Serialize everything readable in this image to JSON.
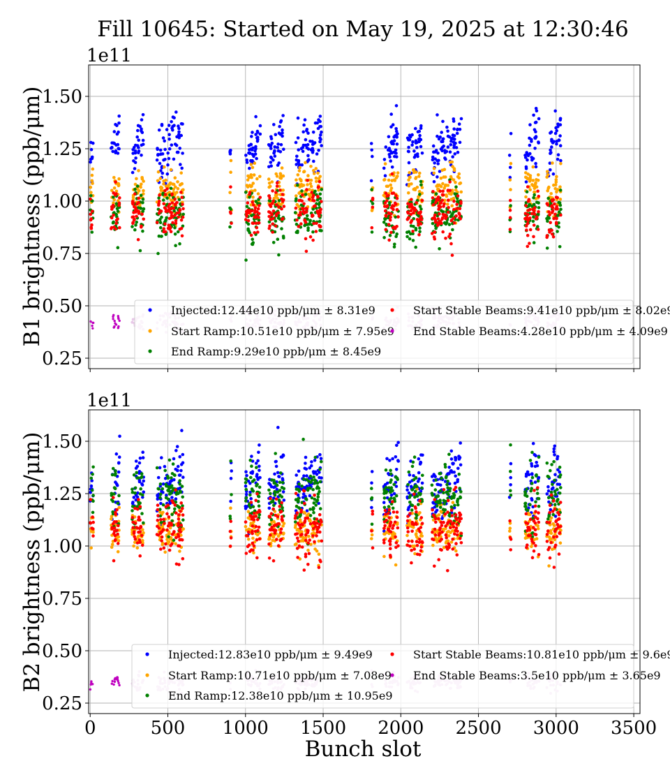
{
  "colors": {
    "injected": "#0000ff",
    "start_ramp": "#ffa500",
    "end_ramp": "#008000",
    "start_stable": "#ff0000",
    "end_stable_b1": "#bf00bf",
    "end_stable_b2": "#bf00bf",
    "end_stable_light": "#e8c8e8"
  },
  "chart_data": {
    "type": "scatter",
    "title": "Fill 10645: Started on May 19, 2025 at 12:30:46",
    "xlabel": "Bunch slot",
    "xlim": [
      -10,
      3540
    ],
    "xticks": [
      "0",
      "500",
      "1000",
      "1500",
      "2000",
      "2500",
      "3000",
      "3500"
    ],
    "panels": [
      {
        "id": "B1",
        "ylabel": "B1 brightness (ppb/μm)",
        "multiplier": "1e11",
        "ylim": [
          0.2,
          1.65
        ],
        "yticks": [
          "0.25",
          "0.50",
          "0.75",
          "1.00",
          "1.25",
          "1.50"
        ],
        "legend": [
          "Injected:12.44e10 ppb/μm ± 8.31e9",
          "Start Ramp:10.51e10 ppb/μm ± 7.95e9",
          "End Ramp:9.29e10 ppb/μm ± 8.45e9",
          "Start Stable Beams:9.41e10 ppb/μm ± 8.02e9",
          "End Stable Beams:4.28e10 ppb/μm ± 4.09e9"
        ],
        "series": [
          {
            "name": "Injected",
            "mean": 1.244,
            "std": 0.0831
          },
          {
            "name": "Start Ramp",
            "mean": 1.051,
            "std": 0.0795
          },
          {
            "name": "End Ramp",
            "mean": 0.929,
            "std": 0.0845
          },
          {
            "name": "Start Stable Beams",
            "mean": 0.941,
            "std": 0.0802
          },
          {
            "name": "End Stable Beams",
            "mean": 0.428,
            "std": 0.0409
          }
        ]
      },
      {
        "id": "B2",
        "ylabel": "B2 brightness (ppb/μm)",
        "multiplier": "1e11",
        "ylim": [
          0.2,
          1.65
        ],
        "yticks": [
          "0.25",
          "0.50",
          "0.75",
          "1.00",
          "1.25",
          "1.50"
        ],
        "legend": [
          "Injected:12.83e10 ppb/μm ± 9.49e9",
          "Start Ramp:10.71e10 ppb/μm ± 7.08e9",
          "End Ramp:12.38e10 ppb/μm ± 10.95e9",
          "Start Stable Beams:10.81e10 ppb/μm ± 9.6e9",
          "End Stable Beams:3.5e10 ppb/μm ± 3.65e9"
        ],
        "series": [
          {
            "name": "Injected",
            "mean": 1.283,
            "std": 0.0949
          },
          {
            "name": "Start Ramp",
            "mean": 1.071,
            "std": 0.0708
          },
          {
            "name": "End Ramp",
            "mean": 1.238,
            "std": 0.1095
          },
          {
            "name": "Start Stable Beams",
            "mean": 1.081,
            "std": 0.096
          },
          {
            "name": "End Stable Beams",
            "mean": 0.35,
            "std": 0.0365
          }
        ]
      }
    ],
    "bunch_trains": [
      [
        0,
        20
      ],
      [
        135,
        190
      ],
      [
        270,
        345
      ],
      [
        430,
        600
      ],
      [
        900,
        910
      ],
      [
        1000,
        1095
      ],
      [
        1150,
        1250
      ],
      [
        1320,
        1490
      ],
      [
        1810,
        1820
      ],
      [
        1890,
        1985
      ],
      [
        2040,
        2140
      ],
      [
        2200,
        2390
      ],
      [
        2700,
        2710
      ],
      [
        2800,
        2890
      ],
      [
        2940,
        3030
      ]
    ]
  }
}
